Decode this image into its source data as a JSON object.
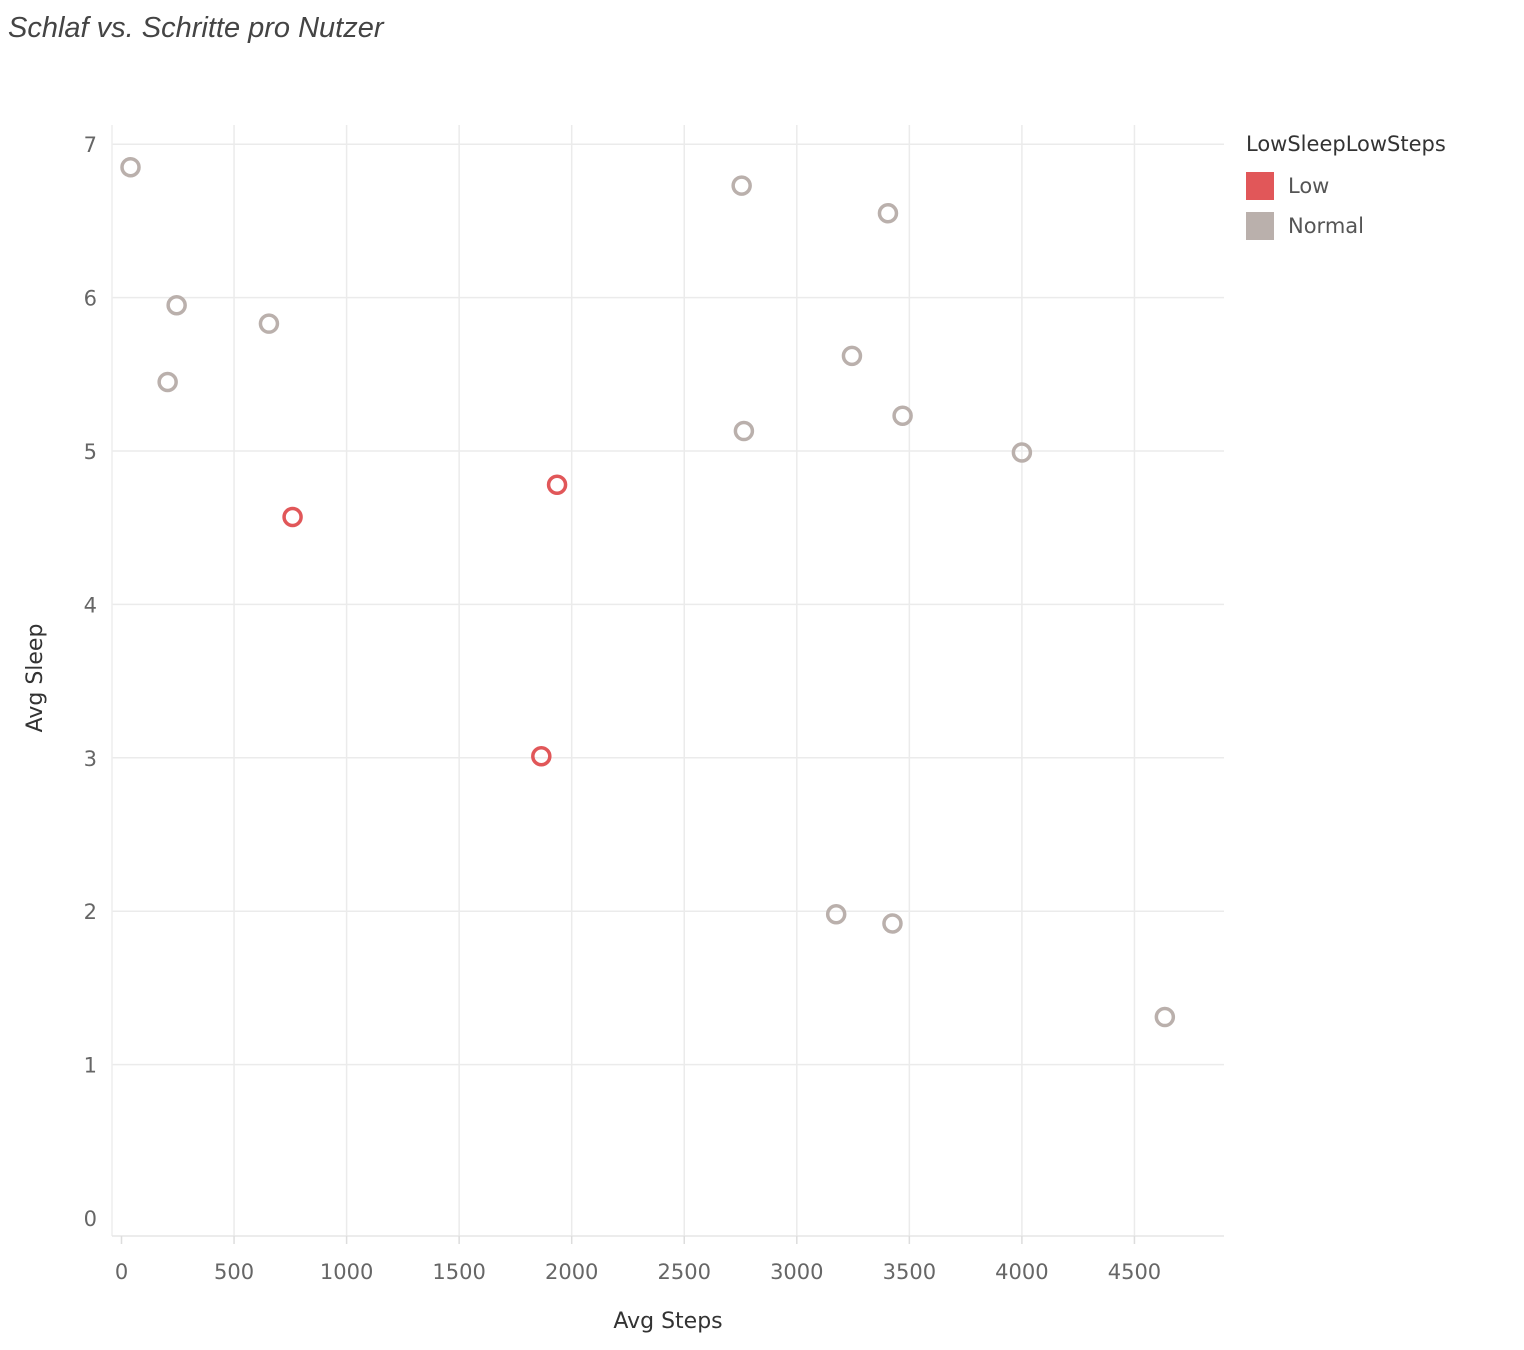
{
  "chart_data": {
    "type": "scatter",
    "title": "Schlaf vs. Schritte pro Nutzer",
    "xlabel": "Avg Steps",
    "ylabel": "Avg Sleep",
    "xlim": [
      -20,
      4900
    ],
    "ylim": [
      -0.1,
      7.25
    ],
    "xticks": [
      "0",
      "500",
      "1000",
      "1500",
      "2000",
      "2500",
      "3000",
      "3500",
      "4000",
      "4500"
    ],
    "yticks": [
      "0",
      "1",
      "2",
      "3",
      "4",
      "5",
      "6",
      "7"
    ],
    "grid": true,
    "legend": {
      "title": "LowSleepLowSteps",
      "position": "top-right",
      "entries": [
        {
          "label": "Low",
          "color": "#e15759"
        },
        {
          "label": "Normal",
          "color": "#bab0ac"
        }
      ]
    },
    "series": [
      {
        "name": "Low",
        "color": "#e15759",
        "points": [
          [
            760,
            4.57
          ],
          [
            1935,
            4.78
          ],
          [
            1865,
            3.01
          ]
        ]
      },
      {
        "name": "Normal",
        "color": "#bab0ac",
        "points": [
          [
            40,
            6.85
          ],
          [
            2755,
            6.73
          ],
          [
            3405,
            6.55
          ],
          [
            245,
            5.95
          ],
          [
            655,
            5.83
          ],
          [
            205,
            5.45
          ],
          [
            3245,
            5.62
          ],
          [
            2765,
            5.13
          ],
          [
            3470,
            5.23
          ],
          [
            4000,
            4.99
          ],
          [
            3175,
            1.98
          ],
          [
            3425,
            1.92
          ],
          [
            4635,
            1.31
          ]
        ]
      }
    ]
  }
}
